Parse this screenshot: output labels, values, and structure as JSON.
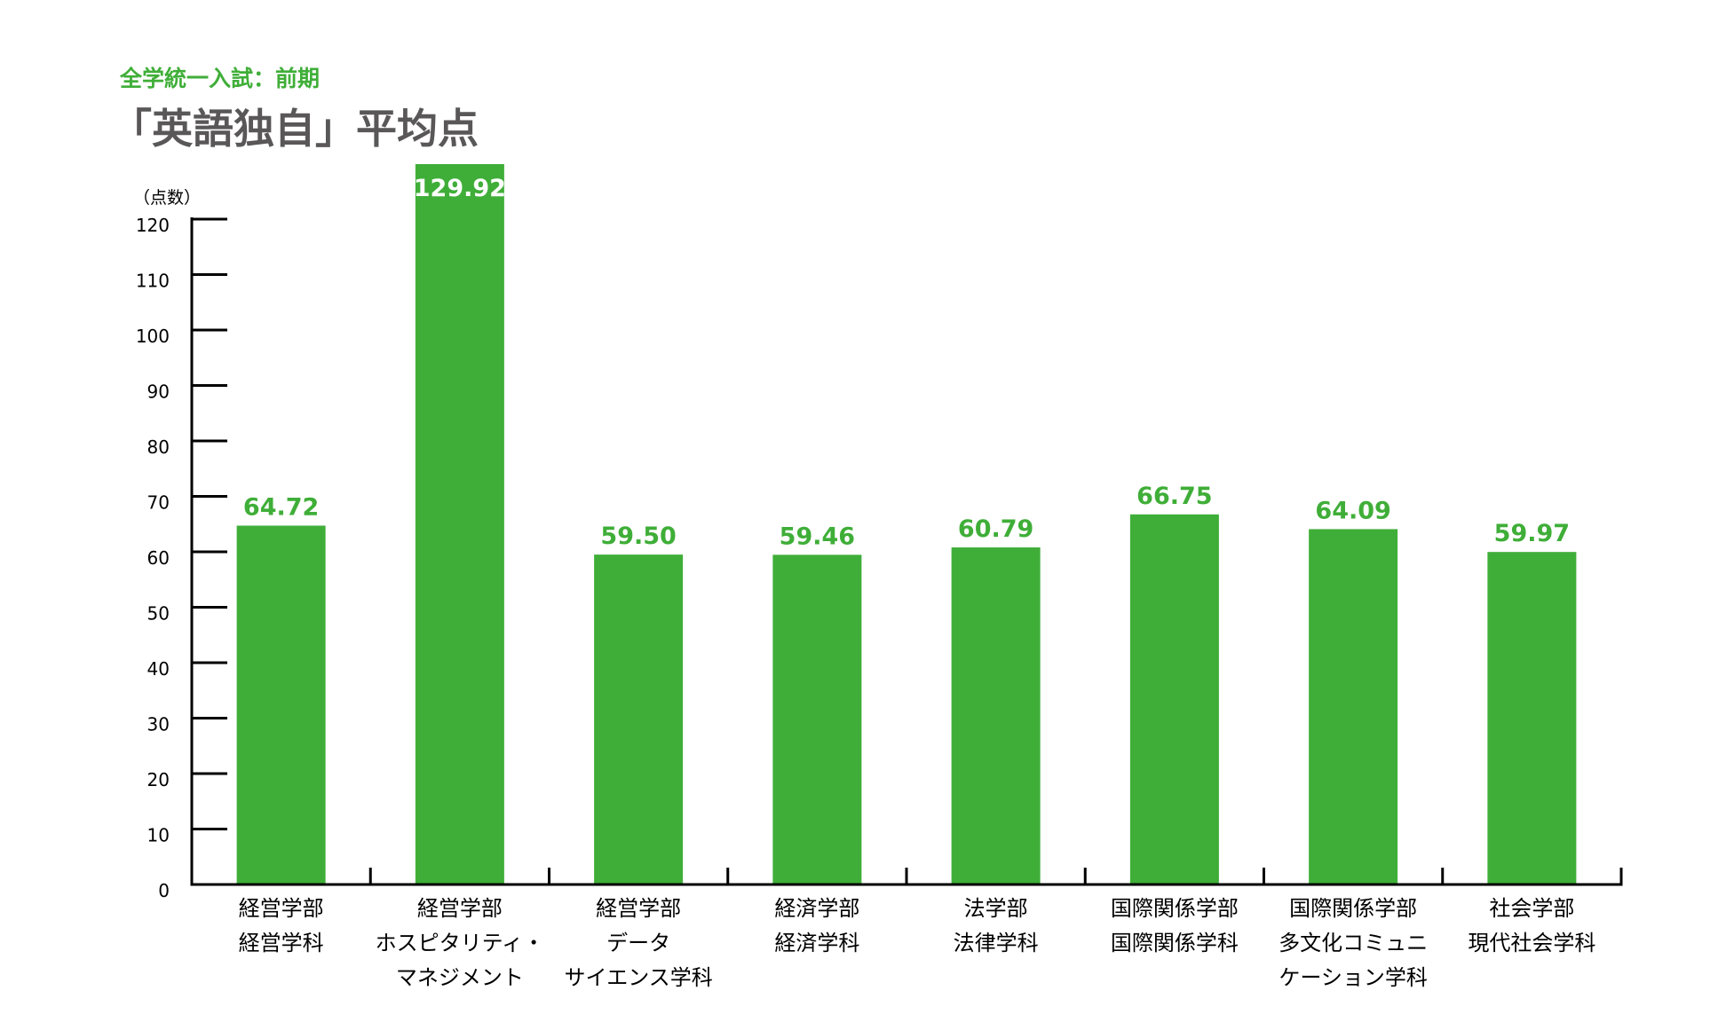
{
  "chart_data": {
    "type": "bar",
    "subtitle": "全学統一入試：前期",
    "title": "「英語独自」平均点",
    "ylabel": "（点数）",
    "ylim": [
      0,
      120
    ],
    "yticks": [
      "0",
      "10",
      "20",
      "30",
      "40",
      "50",
      "60",
      "70",
      "80",
      "90",
      "100",
      "110",
      "120"
    ],
    "categories": [
      [
        "経営学部",
        "経営学科"
      ],
      [
        "経営学部",
        "ホスピタリティ・",
        "マネジメント"
      ],
      [
        "経営学部",
        "データ",
        "サイエンス学科"
      ],
      [
        "経済学部",
        "経済学科"
      ],
      [
        "法学部",
        "法律学科"
      ],
      [
        "国際関係学部",
        "国際関係学科"
      ],
      [
        "国際関係学部",
        "多文化コミュニ",
        "ケーション学科"
      ],
      [
        "社会学部",
        "現代社会学科"
      ]
    ],
    "values": [
      64.72,
      129.92,
      59.5,
      59.46,
      60.79,
      66.75,
      64.09,
      59.97
    ],
    "value_labels": [
      "64.72",
      "129.92",
      "59.50",
      "59.46",
      "60.79",
      "66.75",
      "64.09",
      "59.97"
    ],
    "colors": {
      "bar": "#3fae38",
      "accent_text": "#3fae38",
      "title_text": "#595757",
      "axis": "#000000",
      "inside_label": "#ffffff"
    }
  }
}
